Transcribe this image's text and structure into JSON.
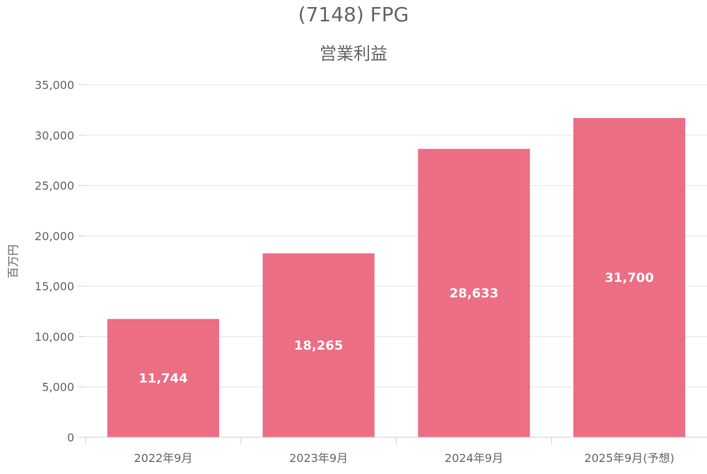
{
  "chart_data": {
    "type": "bar",
    "title": "(7148) FPG",
    "subtitle": "営業利益",
    "ylabel": "百万円",
    "xlabel": "",
    "categories": [
      "2022年9月",
      "2023年9月",
      "2024年9月",
      "2025年9月(予想)"
    ],
    "values": [
      11744,
      18265,
      28633,
      31700
    ],
    "data_labels": [
      "11,744",
      "18,265",
      "28,633",
      "31,700"
    ],
    "ylim": [
      0,
      35000
    ],
    "yticks": [
      0,
      5000,
      10000,
      15000,
      20000,
      25000,
      30000,
      35000
    ],
    "ytick_labels": [
      "0",
      "5,000",
      "10,000",
      "15,000",
      "20,000",
      "25,000",
      "30,000",
      "35,000"
    ],
    "bar_color": "#ec6e84",
    "grid": true,
    "legend": "none"
  }
}
